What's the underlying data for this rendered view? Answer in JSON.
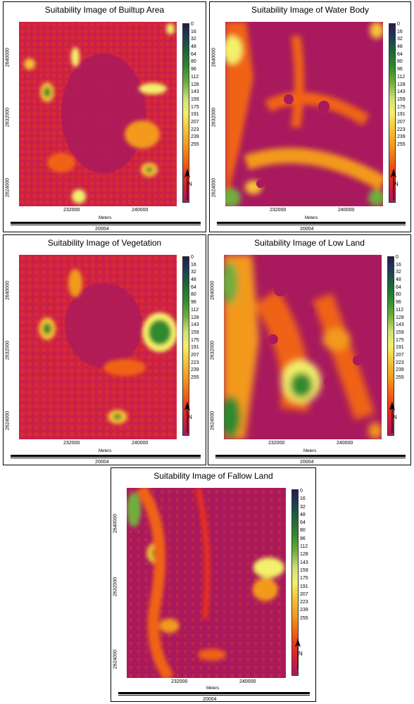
{
  "panels": [
    {
      "id": "builtup",
      "title": "Suitability Image of Builtup Area",
      "y_ticks": [
        "2640000",
        "2632000",
        "2624000"
      ],
      "x_ticks": [
        "232000",
        "240000"
      ],
      "meters_label": "Meters",
      "scale_value": "20004",
      "legend": [
        "0",
        "16",
        "32",
        "48",
        "64",
        "80",
        "96",
        "112",
        "128",
        "143",
        "159",
        "175",
        "191",
        "207",
        "223",
        "239",
        "255"
      ]
    },
    {
      "id": "water",
      "title": "Suitability Image of Water Body",
      "y_ticks": [
        "2640000",
        "2632000",
        "2624000"
      ],
      "x_ticks": [
        "232000",
        "240000"
      ],
      "meters_label": "Meters",
      "scale_value": "20004",
      "legend": [
        "0",
        "16",
        "32",
        "48",
        "64",
        "80",
        "96",
        "112",
        "128",
        "143",
        "159",
        "175",
        "191",
        "207",
        "223",
        "239",
        "255"
      ]
    },
    {
      "id": "vegetation",
      "title": "Suitability Image of Vegetation",
      "y_ticks": [
        "2640000",
        "2632000",
        "2624000"
      ],
      "x_ticks": [
        "232000",
        "240000"
      ],
      "meters_label": "Meters",
      "scale_value": "20004",
      "legend": [
        "0",
        "16",
        "32",
        "48",
        "64",
        "80",
        "96",
        "112",
        "128",
        "143",
        "159",
        "175",
        "191",
        "207",
        "223",
        "239",
        "255"
      ]
    },
    {
      "id": "lowland",
      "title": "Suitability Image of Low Land",
      "y_ticks": [
        "2640000",
        "2632000",
        "2624000"
      ],
      "x_ticks": [
        "232000",
        "240000"
      ],
      "meters_label": "Meters",
      "scale_value": "20004",
      "legend": [
        "0",
        "16",
        "32",
        "48",
        "64",
        "80",
        "96",
        "112",
        "128",
        "143",
        "159",
        "175",
        "191",
        "207",
        "223",
        "239",
        "255"
      ]
    },
    {
      "id": "fallow",
      "title": "Suitability Image of Fallow Land",
      "y_ticks": [
        "2640000",
        "2632000",
        "2624000"
      ],
      "x_ticks": [
        "232000",
        "240000"
      ],
      "meters_label": "Meters",
      "scale_value": "20004",
      "legend": [
        "0",
        "16",
        "32",
        "48",
        "64",
        "80",
        "96",
        "112",
        "128",
        "143",
        "159",
        "175",
        "191",
        "207",
        "223",
        "239",
        "255"
      ]
    }
  ],
  "north_label": "N",
  "colors": {
    "low_suitability": "#a8195e",
    "mid": "#f39a1c",
    "high": "#2d8a2d",
    "max": "#2a1a4a"
  }
}
